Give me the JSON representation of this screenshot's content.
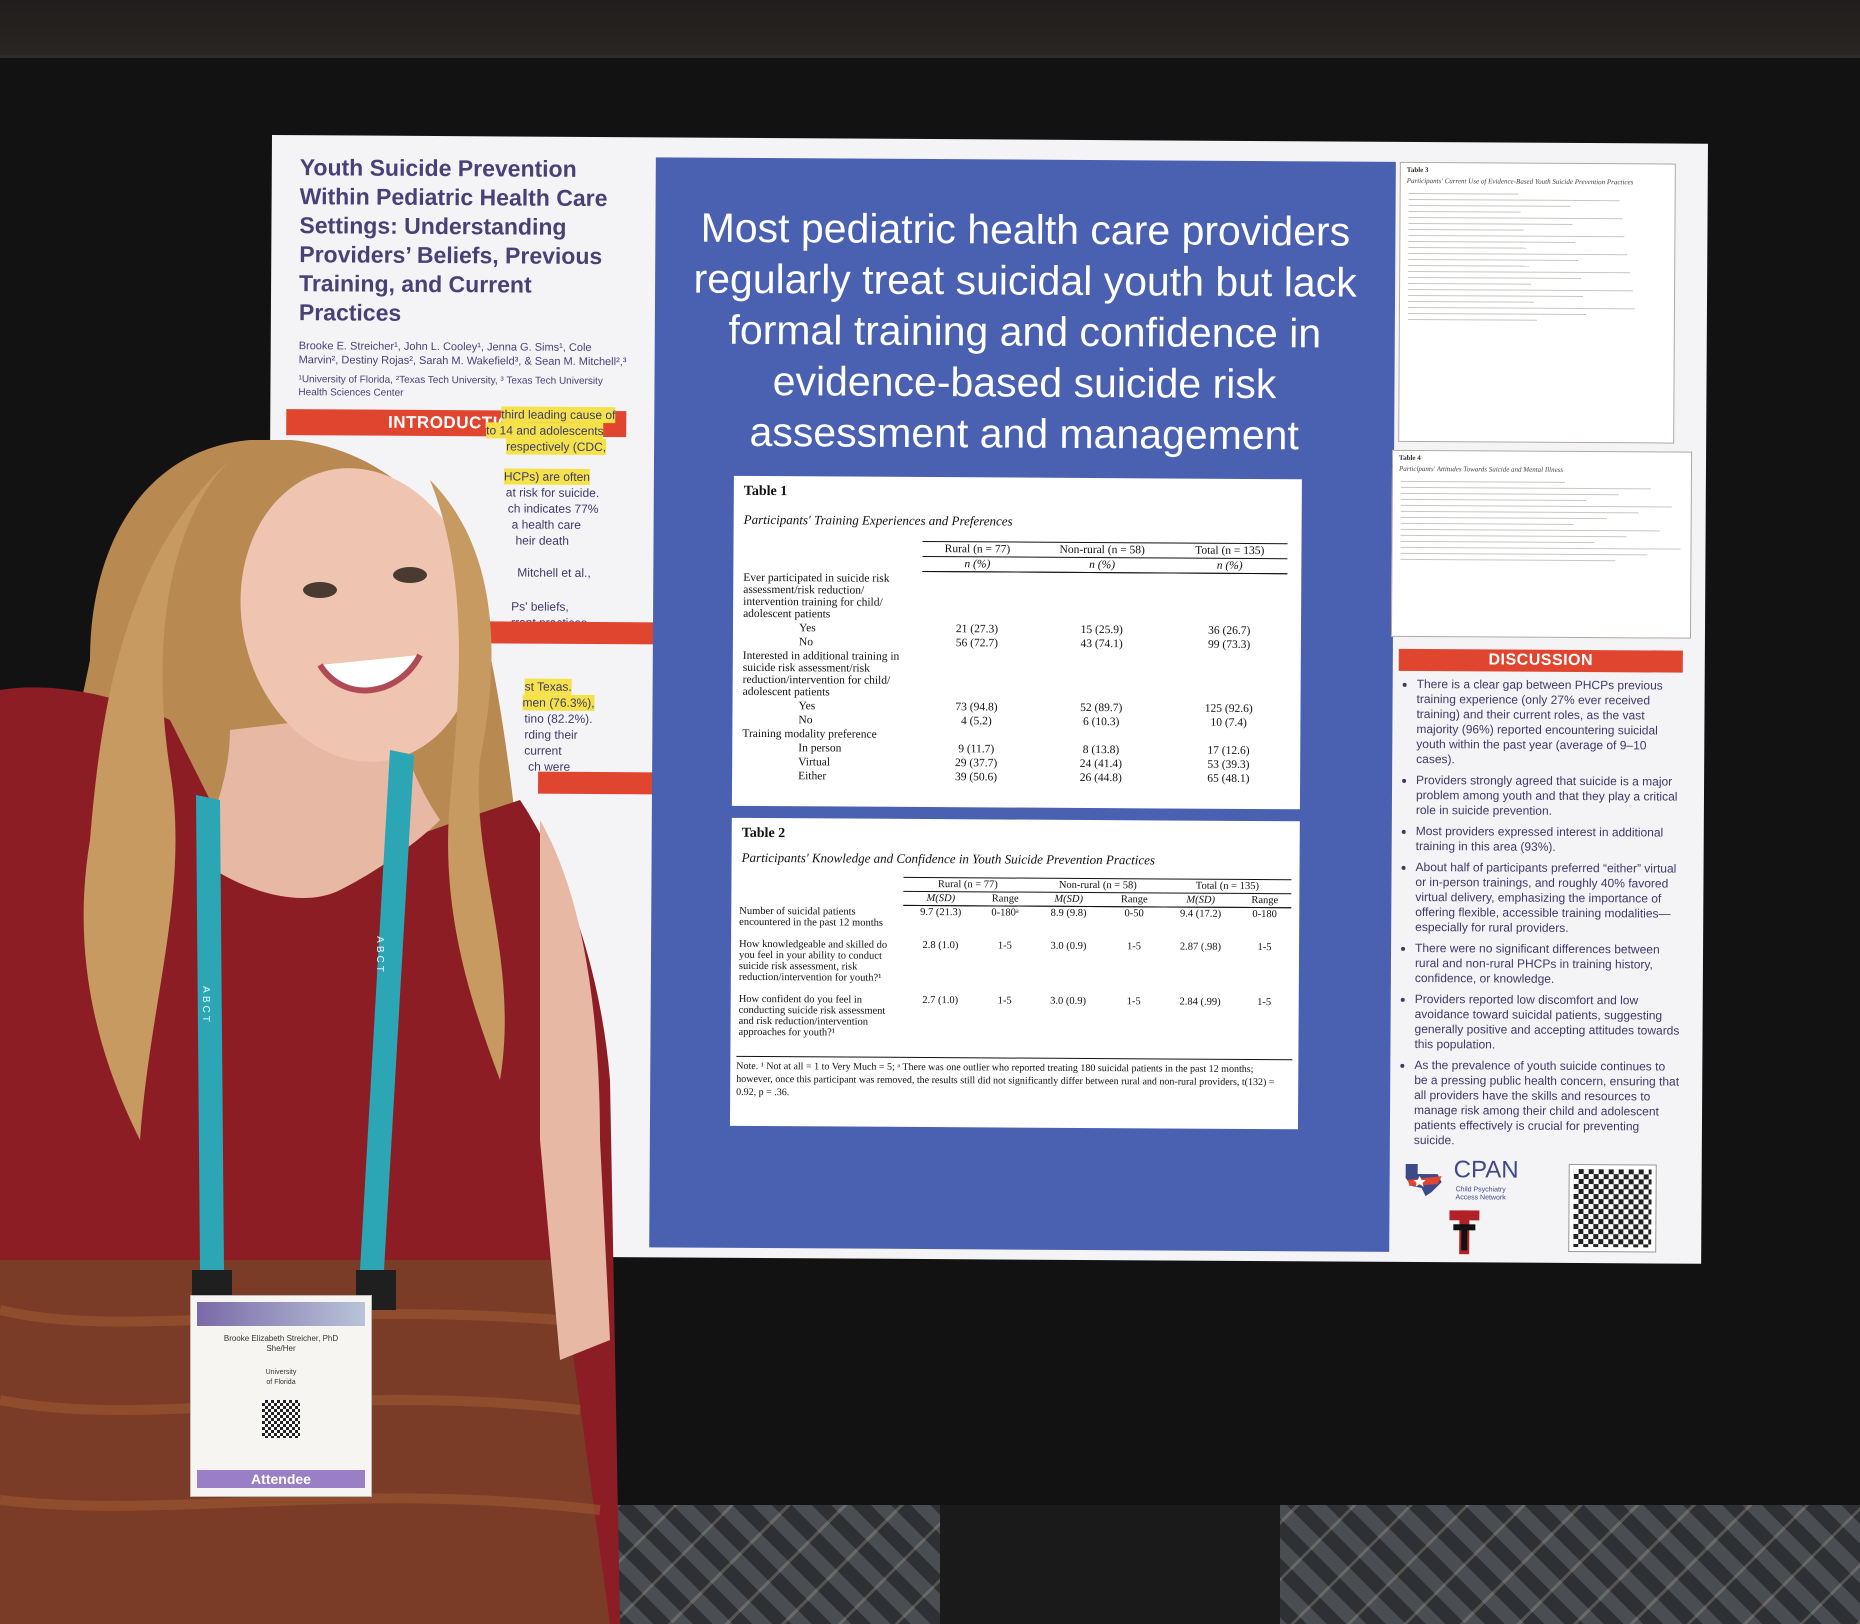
{
  "poster": {
    "title": "Youth Suicide Prevention Within Pediatric Health Care Settings: Understanding Providers’ Beliefs, Previous Training, and Current Practices",
    "authors": "Brooke E. Streicher¹, John L. Cooley¹, Jenna G. Sims¹, Cole Marvin², Destiny Rojas², Sarah M. Wakefield³, & Sean M. Mitchell²,³",
    "affiliations": "¹University of Florida, ²Texas Tech University, ³ Texas Tech University Health Sciences Center",
    "introduction_heading": "INTRODUCTION",
    "intro_fragments": [
      "third leading cause of",
      "to 14 and adolescents",
      "respectively (CDC,",
      "HCPs) are often",
      "at risk for suicide.",
      "ch indicates 77%",
      "a health care",
      "heir death",
      "Mitchell et al.,",
      "Ps' beliefs,",
      "rrent practices",
      "st Texas.",
      "men (76.3%),",
      "tino (82.2%).",
      "rding their",
      "current",
      "ch were"
    ],
    "headline": "Most pediatric health care providers regularly treat suicidal youth but lack formal training and confidence in evidence-based suicide risk assessment and management",
    "table1": {
      "label": "Table 1",
      "caption": "Participants' Training Experiences and Preferences",
      "columns": [
        "Rural (n = 77)",
        "Non-rural (n = 58)",
        "Total (n = 135)"
      ],
      "subheader": "n (%)",
      "rows": [
        {
          "label": "Ever participated in suicide risk assessment/risk reduction/ intervention training for child/ adolescent patients",
          "indent": false,
          "values": [
            "",
            "",
            ""
          ]
        },
        {
          "label": "Yes",
          "indent": true,
          "values": [
            "21 (27.3)",
            "15 (25.9)",
            "36 (26.7)"
          ]
        },
        {
          "label": "No",
          "indent": true,
          "values": [
            "56 (72.7)",
            "43 (74.1)",
            "99 (73.3)"
          ]
        },
        {
          "label": "Interested in additional training in suicide risk assessment/risk reduction/intervention for child/ adolescent patients",
          "indent": false,
          "values": [
            "",
            "",
            ""
          ]
        },
        {
          "label": "Yes",
          "indent": true,
          "values": [
            "73 (94.8)",
            "52 (89.7)",
            "125 (92.6)"
          ]
        },
        {
          "label": "No",
          "indent": true,
          "values": [
            "4 (5.2)",
            "6 (10.3)",
            "10 (7.4)"
          ]
        },
        {
          "label": "Training modality preference",
          "indent": false,
          "values": [
            "",
            "",
            ""
          ]
        },
        {
          "label": "In person",
          "indent": true,
          "values": [
            "9 (11.7)",
            "8 (13.8)",
            "17 (12.6)"
          ]
        },
        {
          "label": "Virtual",
          "indent": true,
          "values": [
            "29 (37.7)",
            "24 (41.4)",
            "53 (39.3)"
          ]
        },
        {
          "label": "Either",
          "indent": true,
          "values": [
            "39 (50.6)",
            "26 (44.8)",
            "65 (48.1)"
          ]
        }
      ]
    },
    "table2": {
      "label": "Table 2",
      "caption": "Participants' Knowledge and Confidence in Youth Suicide Prevention Practices",
      "columns": [
        "Rural (n = 77)",
        "Non-rural (n = 58)",
        "Total (n = 135)"
      ],
      "sub": [
        "M(SD)",
        "Range"
      ],
      "rows": [
        {
          "label": "Number of suicidal patients encountered in the past 12 months",
          "values": [
            "9.7 (21.3)",
            "0-180ᵃ",
            "8.9 (9.8)",
            "0-50",
            "9.4 (17.2)",
            "0-180"
          ]
        },
        {
          "label": "How knowledgeable and skilled do you feel in your ability to conduct suicide risk assessment, risk reduction/intervention for youth?¹",
          "values": [
            "2.8 (1.0)",
            "1-5",
            "3.0 (0.9)",
            "1-5",
            "2.87 (.98)",
            "1-5"
          ]
        },
        {
          "label": "How confident do you feel in conducting suicide risk assessment and risk reduction/intervention approaches for youth?¹",
          "values": [
            "2.7 (1.0)",
            "1-5",
            "3.0 (0.9)",
            "1-5",
            "2.84 (.99)",
            "1-5"
          ]
        }
      ],
      "note": "Note. ¹ Not at all = 1 to Very Much = 5; ᵃ There was one outlier who reported treating 180 suicidal patients in the past 12 months; however, once this participant was removed, the results still did not significantly differ between rural and non-rural providers, t(132) = 0.92, p = .36."
    },
    "table3_label": "Table 3",
    "table3_caption": "Participants' Current Use of Evidence-Based Youth Suicide Prevention Practices",
    "table4_label": "Table 4",
    "table4_caption": "Participants' Attitudes Towards Suicide and Mental Illness",
    "discussion_heading": "DISCUSSION",
    "discussion_points": [
      "There is a clear gap between PHCPs previous training experience (only 27% ever received training) and their current roles, as the vast majority (96%) reported encountering suicidal youth within the past year (average of 9–10 cases).",
      "Providers strongly agreed that suicide is a major problem among youth and that they play a critical role in suicide prevention.",
      "Most providers expressed interest in additional training in this area (93%).",
      "About half of participants preferred “either” virtual or in-person trainings, and roughly 40% favored virtual delivery, emphasizing the importance of offering flexible, accessible training modalities—especially for rural providers.",
      "There were no significant differences between rural and non-rural PHCPs in training history, confidence, or knowledge.",
      "Providers reported low discomfort and low avoidance toward suicidal patients, suggesting generally positive and accepting attitudes towards this population.",
      "As the prevalence of youth suicide continues to be a pressing public health concern, ensuring that all providers have the skills and resources to manage risk among their child and adolescent patients effectively is crucial for preventing suicide."
    ],
    "cpan_name": "CPAN",
    "cpan_sub": "Child Psychiatry Access Network"
  },
  "badge": {
    "name": "Brooke Elizabeth Streicher, PhD",
    "pronouns": "She/Her",
    "org_line1": "University",
    "org_line2": "of Florida",
    "role": "Attendee"
  },
  "lanyard_text": "ABCT",
  "colors": {
    "poster_blue": "#4a60b0",
    "accent_red": "#e0452f",
    "title_purple": "#4a4078",
    "highlight": "#f5e24a",
    "lanyard_teal": "#2ca5b5",
    "dress": "#8c1d25"
  }
}
